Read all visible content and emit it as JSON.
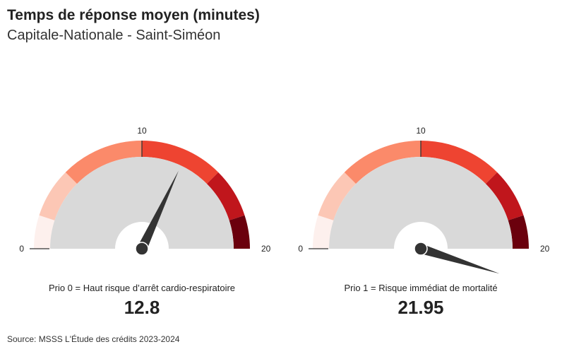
{
  "title": "Temps de réponse moyen (minutes)",
  "subtitle": "Capitale-Nationale - Saint-Siméon",
  "source": "Source: MSSS L'Étude des crédits 2023-2024",
  "colors": {
    "bands": [
      "#fdf0ed",
      "#fcc7b5",
      "#fb8a6a",
      "#ee4431",
      "#c0161c",
      "#6b000d"
    ],
    "inner": "#d9d9d9",
    "needle": "#333333"
  },
  "chart_data": [
    {
      "type": "gauge",
      "label": "Prio 0 = Haut risque d’arrêt cardio-respiratoire",
      "value": 12.8,
      "value_text": "12.8",
      "min": 0,
      "max": 20,
      "tick_labels": [
        "0",
        "10",
        "20"
      ],
      "band_edges": [
        0,
        2,
        5,
        10,
        15,
        18,
        20
      ]
    },
    {
      "type": "gauge",
      "label": "Prio 1 = Risque immédiat de mortalité",
      "value": 21.95,
      "value_text": "21.95",
      "min": 0,
      "max": 20,
      "tick_labels": [
        "0",
        "10",
        "20"
      ],
      "band_edges": [
        0,
        2,
        5,
        10,
        15,
        18,
        20
      ]
    }
  ]
}
